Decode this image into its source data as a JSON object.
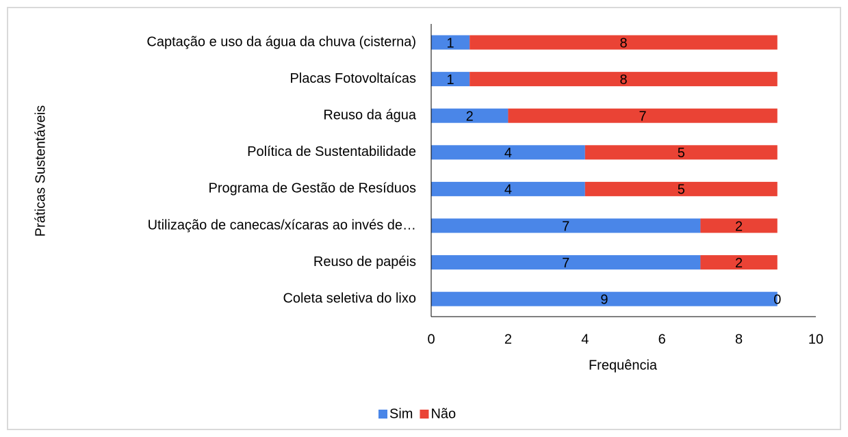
{
  "chart_data": {
    "type": "stacked_barh",
    "categories": [
      "Captação e uso da água da chuva (cisterna)",
      "Placas Fotovoltaícas",
      "Reuso da água",
      "Política de Sustentabilidade",
      "Programa de Gestão de Resíduos",
      "Utilização de canecas/xícaras ao invés de…",
      "Reuso de papéis",
      "Coleta seletiva do lixo"
    ],
    "series": [
      {
        "name": "Sim",
        "color": "#4a86e8",
        "values": [
          1,
          1,
          2,
          4,
          4,
          7,
          7,
          9
        ]
      },
      {
        "name": "Não",
        "color": "#ea4335",
        "values": [
          8,
          8,
          7,
          5,
          5,
          2,
          2,
          0
        ]
      }
    ],
    "xlim": [
      0,
      10
    ],
    "xticks": [
      0,
      2,
      4,
      6,
      8,
      10
    ],
    "xlabel": "Frequência",
    "ylabel": "Práticas  Sustentáveis",
    "legend": "bottom",
    "grid": false
  }
}
